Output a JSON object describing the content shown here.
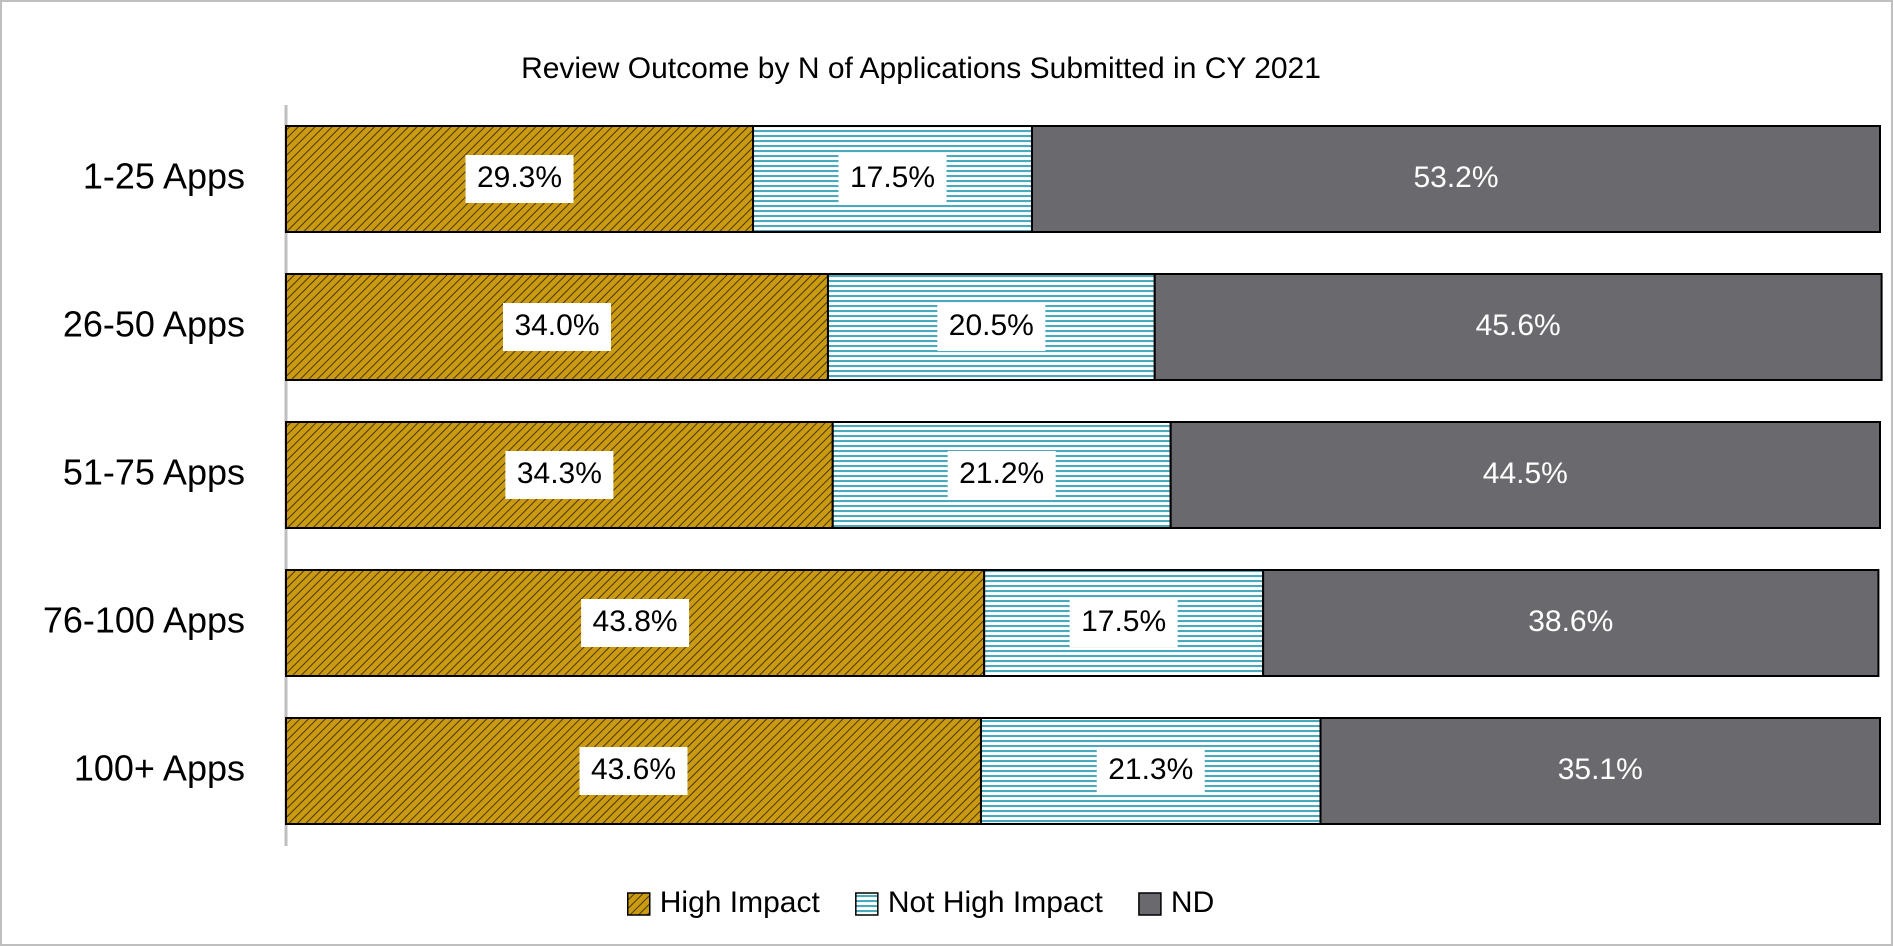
{
  "chart_data": {
    "type": "stacked_barh",
    "title": "Review Outcome by N of Applications Submitted in CY 2021",
    "categories": [
      "1-25 Apps",
      "26-50 Apps",
      "51-75 Apps",
      "76-100 Apps",
      "100+ Apps"
    ],
    "xlim": [
      0,
      100
    ],
    "legend": "bottom",
    "series": [
      {
        "name": "High Impact",
        "color": "#c99a12",
        "values": [
          29.3,
          34.0,
          34.3,
          43.8,
          43.6
        ],
        "value_labels": [
          "29.3%",
          "34.0%",
          "34.3%",
          "43.8%",
          "43.6%"
        ]
      },
      {
        "name": "Not High Impact",
        "color": "#4aa9bd",
        "values": [
          17.5,
          20.5,
          21.2,
          17.5,
          21.3
        ],
        "value_labels": [
          "17.5%",
          "20.5%",
          "21.2%",
          "17.5%",
          "21.3%"
        ]
      },
      {
        "name": "ND",
        "color": "#6a696e",
        "values": [
          53.2,
          45.6,
          44.5,
          38.6,
          35.1
        ],
        "value_labels": [
          "53.2%",
          "45.6%",
          "44.5%",
          "38.6%",
          "35.1%"
        ]
      }
    ]
  }
}
